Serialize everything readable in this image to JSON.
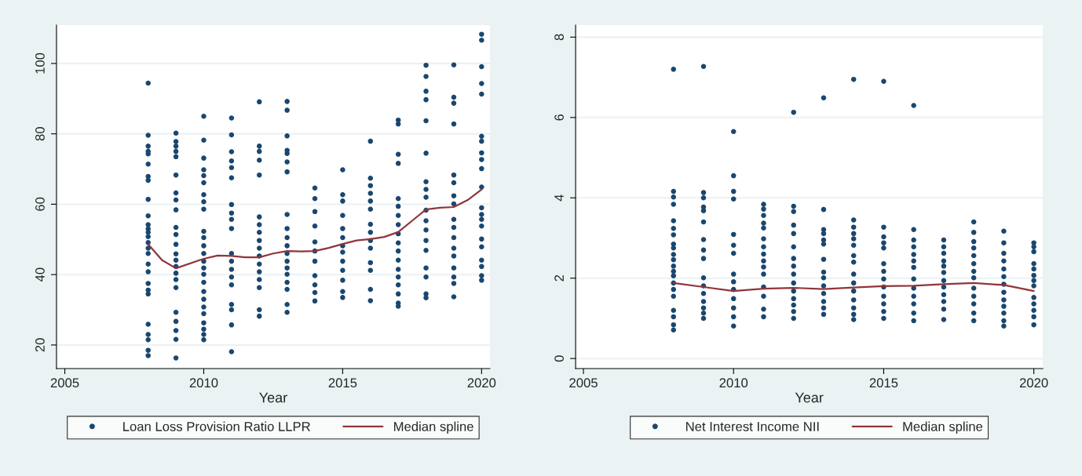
{
  "chart_data": [
    {
      "type": "scatter",
      "xlabel": "Year",
      "xlim": [
        2004.7,
        2020.3
      ],
      "ylim": [
        13.3,
        110.9
      ],
      "xticks": [
        2005,
        2010,
        2015,
        2020
      ],
      "yticks": [
        20,
        40,
        60,
        80,
        100
      ],
      "grid": "y",
      "legend": "bottom",
      "series": [
        {
          "type": "scatter",
          "name": "Loan Loss Provision Ratio LLPR",
          "color": "#1a476f",
          "marker": "circle",
          "x": [
            2008,
            2008,
            2008,
            2008,
            2008,
            2008,
            2008,
            2008,
            2008,
            2008,
            2008,
            2008,
            2008,
            2008,
            2008,
            2008,
            2008,
            2008,
            2008,
            2008,
            2008,
            2008,
            2008,
            2008,
            2008,
            2008,
            2008,
            2009,
            2009,
            2009,
            2009,
            2009,
            2009,
            2009,
            2009,
            2009,
            2009,
            2009,
            2009,
            2009,
            2009,
            2009,
            2009,
            2009,
            2009,
            2009,
            2009,
            2009,
            2009,
            2009,
            2010,
            2010,
            2010,
            2010,
            2010,
            2010,
            2010,
            2010,
            2010,
            2010,
            2010,
            2010,
            2010,
            2010,
            2010,
            2010,
            2010,
            2010,
            2010,
            2010,
            2010,
            2010,
            2010,
            2010,
            2010,
            2011,
            2011,
            2011,
            2011,
            2011,
            2011,
            2011,
            2011,
            2011,
            2011,
            2011,
            2011,
            2011,
            2011,
            2011,
            2011,
            2011,
            2011,
            2011,
            2012,
            2012,
            2012,
            2012,
            2012,
            2012,
            2012,
            2012,
            2012,
            2012,
            2012,
            2012,
            2012,
            2012,
            2012,
            2012,
            2012,
            2013,
            2013,
            2013,
            2013,
            2013,
            2013,
            2013,
            2013,
            2013,
            2013,
            2013,
            2013,
            2013,
            2013,
            2013,
            2013,
            2013,
            2013,
            2013,
            2014,
            2014,
            2014,
            2014,
            2014,
            2014,
            2014,
            2014,
            2014,
            2014,
            2014,
            2015,
            2015,
            2015,
            2015,
            2015,
            2015,
            2015,
            2015,
            2015,
            2015,
            2015,
            2015,
            2015,
            2016,
            2016,
            2016,
            2016,
            2016,
            2016,
            2016,
            2016,
            2016,
            2016,
            2016,
            2016,
            2016,
            2016,
            2017,
            2017,
            2017,
            2017,
            2017,
            2017,
            2017,
            2017,
            2017,
            2017,
            2017,
            2017,
            2017,
            2017,
            2017,
            2017,
            2017,
            2017,
            2018,
            2018,
            2018,
            2018,
            2018,
            2018,
            2018,
            2018,
            2018,
            2018,
            2018,
            2018,
            2018,
            2018,
            2018,
            2018,
            2018,
            2018,
            2019,
            2019,
            2019,
            2019,
            2019,
            2019,
            2019,
            2019,
            2019,
            2019,
            2019,
            2019,
            2019,
            2019,
            2019,
            2019,
            2019,
            2020,
            2020,
            2020,
            2020,
            2020,
            2020,
            2020,
            2020,
            2020,
            2020,
            2020,
            2020,
            2020,
            2020,
            2020,
            2020,
            2020,
            2020,
            2020,
            2020,
            2020
          ],
          "values": [
            94.4,
            79.6,
            76.5,
            75,
            74.3,
            71.4,
            67.9,
            66.8,
            61.4,
            56.7,
            54.2,
            53,
            52,
            50.8,
            49.1,
            47.5,
            46,
            43,
            40.8,
            37.5,
            35.6,
            34.5,
            25.9,
            23,
            21.5,
            18.5,
            17,
            80.2,
            77.8,
            76.5,
            75,
            73.5,
            68.3,
            63.2,
            61.2,
            58.4,
            53.4,
            51.4,
            48.6,
            45.9,
            44.1,
            42.3,
            40.4,
            38.6,
            36.3,
            29.3,
            26.7,
            24.1,
            21.6,
            16.3,
            85,
            78.2,
            73.1,
            69.8,
            68.1,
            66.1,
            62.7,
            60.7,
            58.6,
            52.3,
            50.5,
            48.2,
            46,
            43.8,
            41.9,
            40.1,
            37.8,
            35.2,
            33,
            30.8,
            28.9,
            26.3,
            24.5,
            23,
            21.5,
            84.5,
            79.7,
            74.9,
            72.3,
            70.4,
            67.5,
            59.9,
            57.5,
            55.7,
            53.1,
            46,
            43.8,
            41.5,
            39.3,
            37.1,
            31.5,
            30,
            25.7,
            18.1,
            89.1,
            76.5,
            75,
            72.5,
            68.3,
            56.4,
            54.2,
            52,
            49.7,
            47.5,
            45.3,
            43,
            40.8,
            38.6,
            36.3,
            30,
            28.2,
            89.2,
            86.7,
            79.4,
            75.3,
            74.4,
            72,
            69.2,
            57.1,
            53.1,
            50.5,
            48.2,
            46,
            43.8,
            41.9,
            40.1,
            37.8,
            35.8,
            31.5,
            29.3,
            64.6,
            61.6,
            57.9,
            53.8,
            49.3,
            46.7,
            43.8,
            39.7,
            37.1,
            34.9,
            32.5,
            69.8,
            62.7,
            60.9,
            56.8,
            53.1,
            50.5,
            48.2,
            46.4,
            43.8,
            41.2,
            38.4,
            35.2,
            33.5,
            77.9,
            67.4,
            65.3,
            63.1,
            60.9,
            58.6,
            54.3,
            52,
            49.7,
            47.5,
            43.4,
            41.2,
            35.8,
            32.6,
            83.9,
            82.8,
            74.2,
            71.6,
            61.6,
            59.4,
            56.8,
            54.2,
            51.6,
            49,
            46.7,
            44.1,
            41.5,
            39.3,
            37.1,
            34.5,
            31.9,
            31,
            99.5,
            96.3,
            92.1,
            89.7,
            83.7,
            74.5,
            66.4,
            64.2,
            62,
            58.3,
            55.3,
            52.7,
            49.7,
            46.9,
            41.9,
            39.3,
            34.5,
            33.4,
            99.6,
            90.4,
            88.7,
            82.8,
            68.3,
            66.1,
            62.4,
            60.1,
            55.7,
            53.4,
            50.5,
            47.5,
            45.3,
            41.9,
            39.3,
            37.5,
            33.7,
            108.3,
            106.6,
            99.1,
            94.3,
            91.3,
            79.3,
            77.9,
            74.6,
            72.7,
            70.1,
            64.9,
            59,
            57.1,
            55.7,
            53.8,
            50.1,
            47.9,
            44.1,
            42.3,
            39.7,
            38.4
          ]
        },
        {
          "type": "line",
          "name": "Median spline",
          "color": "#90353b",
          "line_style": "solid",
          "x": [
            2008,
            2008.5,
            2009,
            2010,
            2010.5,
            2011,
            2011.5,
            2012,
            2012.5,
            2013,
            2013.5,
            2014,
            2014.5,
            2015,
            2015.5,
            2016,
            2016.5,
            2017,
            2017.5,
            2018,
            2018.5,
            2019,
            2019.5,
            2020
          ],
          "values": [
            48.6,
            44.1,
            41.8,
            44.5,
            45.4,
            45.3,
            44.9,
            44.9,
            46,
            46.7,
            46.6,
            46.7,
            47.6,
            48.7,
            49.7,
            50.1,
            50.7,
            52.1,
            55.3,
            58.5,
            59,
            59.2,
            61.2,
            64.2
          ]
        }
      ]
    },
    {
      "type": "scatter",
      "xlabel": "Year",
      "xlim": [
        2004.74,
        2020.3
      ],
      "ylim": [
        -0.25,
        8.3
      ],
      "xticks": [
        2005,
        2010,
        2015,
        2020
      ],
      "yticks": [
        0,
        2,
        4,
        6,
        8
      ],
      "grid": "y",
      "legend": "bottom",
      "series": [
        {
          "type": "scatter",
          "name": "Net Interest Income NII",
          "color": "#1a476f",
          "marker": "circle",
          "x": [
            2008,
            2008,
            2008,
            2008,
            2008,
            2008,
            2008,
            2008,
            2008,
            2008,
            2008,
            2008,
            2008,
            2008,
            2008,
            2008,
            2008,
            2008,
            2008,
            2008,
            2008,
            2009,
            2009,
            2009,
            2009,
            2009,
            2009,
            2009,
            2009,
            2009,
            2009,
            2009,
            2009,
            2009,
            2009,
            2009,
            2009,
            2010,
            2010,
            2010,
            2010,
            2010,
            2010,
            2010,
            2010,
            2010,
            2010,
            2010,
            2010,
            2010,
            2010,
            2011,
            2011,
            2011,
            2011,
            2011,
            2011,
            2011,
            2011,
            2011,
            2011,
            2011,
            2011,
            2011,
            2011,
            2011,
            2012,
            2012,
            2012,
            2012,
            2012,
            2012,
            2012,
            2012,
            2012,
            2012,
            2012,
            2012,
            2012,
            2012,
            2012,
            2013,
            2013,
            2013,
            2013,
            2013,
            2013,
            2013,
            2013,
            2013,
            2013,
            2013,
            2013,
            2013,
            2013,
            2014,
            2014,
            2014,
            2014,
            2014,
            2014,
            2014,
            2014,
            2014,
            2014,
            2014,
            2014,
            2014,
            2014,
            2014,
            2015,
            2015,
            2015,
            2015,
            2015,
            2015,
            2015,
            2015,
            2015,
            2015,
            2015,
            2015,
            2015,
            2016,
            2016,
            2016,
            2016,
            2016,
            2016,
            2016,
            2016,
            2016,
            2016,
            2016,
            2016,
            2016,
            2017,
            2017,
            2017,
            2017,
            2017,
            2017,
            2017,
            2017,
            2017,
            2017,
            2017,
            2017,
            2018,
            2018,
            2018,
            2018,
            2018,
            2018,
            2018,
            2018,
            2018,
            2018,
            2018,
            2018,
            2018,
            2019,
            2019,
            2019,
            2019,
            2019,
            2019,
            2019,
            2019,
            2019,
            2019,
            2019,
            2019,
            2019,
            2020,
            2020,
            2020,
            2020,
            2020,
            2020,
            2020,
            2020,
            2020,
            2020,
            2020,
            2020,
            2020
          ],
          "values": [
            7.2,
            4.16,
            4.02,
            3.84,
            3.43,
            3.24,
            3.08,
            2.85,
            2.75,
            2.59,
            2.46,
            2.3,
            2.17,
            2.06,
            1.88,
            1.72,
            1.55,
            1.2,
            1.04,
            0.84,
            0.71,
            7.27,
            4.13,
            4,
            3.77,
            3.68,
            3.4,
            2.96,
            2.7,
            2.49,
            2.01,
            1.81,
            1.62,
            1.42,
            1.26,
            1.13,
            1.0,
            5.65,
            4.55,
            4.16,
            3.97,
            3.09,
            2.82,
            2.62,
            2.1,
            1.91,
            1.72,
            1.49,
            1.26,
            1.04,
            0.81,
            3.84,
            3.72,
            3.56,
            3.37,
            3.25,
            2.98,
            2.78,
            2.6,
            2.43,
            2.28,
            2.1,
            1.78,
            1.55,
            1.23,
            1.04,
            6.13,
            3.79,
            3.66,
            3.32,
            3.11,
            2.78,
            2.49,
            2.3,
            2.1,
            1.88,
            1.68,
            1.49,
            1.33,
            1.17,
            1.0,
            6.49,
            3.71,
            3.21,
            3.11,
            2.95,
            2.85,
            2.47,
            2.15,
            2.01,
            1.81,
            1.62,
            1.42,
            1.26,
            1.1,
            6.95,
            3.45,
            3.27,
            3.11,
            2.98,
            2.82,
            2.56,
            2.4,
            2.1,
            1.88,
            1.68,
            1.46,
            1.26,
            1.1,
            0.97,
            6.9,
            3.27,
            3.03,
            2.88,
            2.75,
            2.36,
            2.17,
            1.98,
            1.78,
            1.55,
            1.36,
            1.17,
            1.0,
            6.3,
            3.21,
            2.95,
            2.78,
            2.59,
            2.43,
            2.27,
            1.98,
            1.75,
            1.55,
            1.36,
            1.13,
            0.94,
            2.95,
            2.78,
            2.62,
            2.43,
            2.3,
            2.14,
            1.94,
            1.78,
            1.59,
            1.42,
            1.23,
            0.97,
            3.4,
            3.14,
            2.91,
            2.75,
            2.56,
            2.36,
            2.17,
            2.01,
            1.75,
            1.55,
            1.36,
            1.13,
            0.94,
            3.17,
            2.88,
            2.62,
            2.43,
            2.23,
            2.04,
            1.85,
            1.65,
            1.46,
            1.3,
            1.13,
            0.94,
            0.81,
            2.88,
            2.78,
            2.66,
            2.36,
            2.23,
            2.07,
            1.94,
            1.81,
            1.52,
            1.36,
            1.2,
            1.04,
            0.84
          ]
        },
        {
          "type": "line",
          "name": "Median spline",
          "color": "#90353b",
          "line_style": "solid",
          "x": [
            2008,
            2009,
            2010,
            2011,
            2012,
            2013,
            2014,
            2015,
            2016,
            2017,
            2018,
            2019,
            2020
          ],
          "values": [
            1.88,
            1.78,
            1.68,
            1.74,
            1.76,
            1.73,
            1.77,
            1.8,
            1.81,
            1.85,
            1.88,
            1.83,
            1.68
          ]
        }
      ]
    }
  ]
}
